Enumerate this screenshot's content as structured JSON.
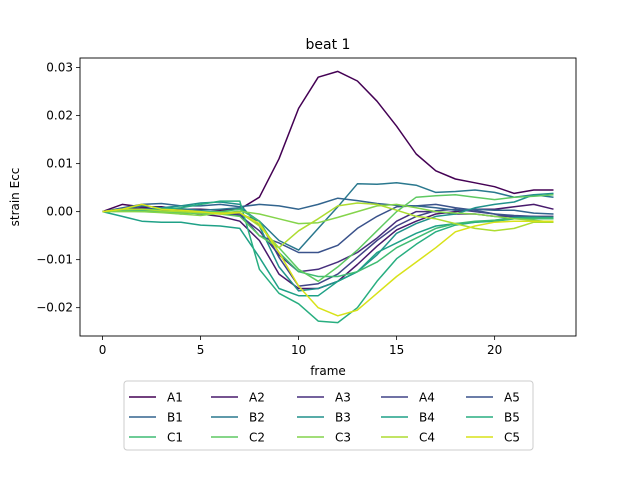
{
  "chart_data": {
    "type": "line",
    "title": "beat 1",
    "xlabel": "frame",
    "ylabel": "strain Ecc",
    "xlim": [
      -1.15,
      24.15
    ],
    "ylim": [
      -0.0259,
      0.032
    ],
    "xticks": [
      0,
      5,
      10,
      15,
      20
    ],
    "yticks": [
      -0.02,
      -0.01,
      0.0,
      0.01,
      0.02,
      0.03
    ],
    "xtick_labels": [
      "0",
      "5",
      "10",
      "15",
      "20"
    ],
    "ytick_labels": [
      "−0.02",
      "−0.01",
      "0.00",
      "0.01",
      "0.02",
      "0.03"
    ],
    "grid": false,
    "legend_position": "bottom",
    "x": [
      0,
      1,
      2,
      3,
      4,
      5,
      6,
      7,
      8,
      9,
      10,
      11,
      12,
      13,
      14,
      15,
      16,
      17,
      18,
      19,
      20,
      21,
      22,
      23
    ],
    "series": [
      {
        "name": "A1",
        "color": "#440154",
        "values": [
          0,
          0.0015,
          0.001,
          0.001,
          0.0005,
          0.0005,
          0.0003,
          0.0005,
          0.003,
          0.011,
          0.0215,
          0.028,
          0.0292,
          0.0272,
          0.023,
          0.0178,
          0.012,
          0.0085,
          0.0068,
          0.006,
          0.0052,
          0.0038,
          0.0045,
          0.0045
        ]
      },
      {
        "name": "A2",
        "color": "#481a6c",
        "values": [
          0,
          0.0005,
          0.0008,
          0.0004,
          0.0,
          -0.0005,
          -0.001,
          -0.002,
          -0.006,
          -0.013,
          -0.016,
          -0.016,
          -0.0145,
          -0.011,
          -0.0072,
          -0.0038,
          -0.002,
          -0.0005,
          0.0,
          0.0005,
          0.0005,
          0.001,
          0.0015,
          0.0005
        ]
      },
      {
        "name": "A3",
        "color": "#472f7d",
        "values": [
          0,
          0.0002,
          0.0004,
          0.0003,
          0.0001,
          0.0,
          -0.0003,
          -0.0008,
          -0.004,
          -0.009,
          -0.0125,
          -0.012,
          -0.0105,
          -0.0085,
          -0.0055,
          -0.002,
          0.0,
          0.0,
          -0.0005,
          -0.0005,
          -0.001,
          -0.001,
          -0.001,
          -0.001
        ]
      },
      {
        "name": "A4",
        "color": "#414487",
        "values": [
          0,
          0.0003,
          0.0006,
          0.0004,
          0.0003,
          0.0,
          -0.0003,
          -0.0005,
          -0.002,
          -0.0095,
          -0.0155,
          -0.015,
          -0.013,
          -0.0095,
          -0.006,
          -0.003,
          -0.001,
          0.0002,
          0.0005,
          0.0,
          -0.0005,
          -0.0012,
          -0.0015,
          -0.0015
        ]
      },
      {
        "name": "A5",
        "color": "#3a528b",
        "values": [
          0,
          0.0002,
          0.0004,
          0.0003,
          0.0002,
          0.0,
          -0.0001,
          -0.0003,
          -0.005,
          -0.0065,
          -0.0085,
          -0.0085,
          -0.007,
          -0.0035,
          -0.001,
          0.001,
          0.0012,
          0.0015,
          0.0008,
          0.0003,
          -0.0005,
          -0.0008,
          -0.001,
          -0.0015
        ]
      },
      {
        "name": "B1",
        "color": "#32648e",
        "values": [
          0,
          0.0008,
          0.0015,
          0.0017,
          0.0012,
          0.0012,
          0.0015,
          0.001,
          0.0015,
          0.0012,
          0.0005,
          0.0015,
          0.0028,
          0.0023,
          0.0017,
          0.0013,
          0.0012,
          0.0008,
          0.0003,
          0.0005,
          0.0003,
          0.0003,
          -0.0003,
          -0.0005
        ]
      },
      {
        "name": "B2",
        "color": "#2a788e",
        "values": [
          0,
          0.0005,
          0.0012,
          0.0008,
          0.0006,
          0.0003,
          0.0005,
          0.0008,
          -0.002,
          -0.006,
          -0.008,
          -0.0035,
          0.001,
          0.0058,
          0.0057,
          0.006,
          0.0055,
          0.004,
          0.0042,
          0.0045,
          0.004,
          0.003,
          0.0035,
          0.003
        ]
      },
      {
        "name": "B3",
        "color": "#21918c",
        "values": [
          0,
          0.0005,
          0.0002,
          0.0008,
          0.0012,
          0.0018,
          0.002,
          0.0015,
          -0.003,
          -0.0115,
          -0.0165,
          -0.016,
          -0.0145,
          -0.0125,
          -0.009,
          -0.0045,
          -0.0025,
          -0.001,
          -0.0005,
          0.0008,
          0.0015,
          0.002,
          0.0035,
          0.0038
        ]
      },
      {
        "name": "B4",
        "color": "#1fa187",
        "values": [
          0,
          -0.001,
          -0.002,
          -0.0022,
          -0.0022,
          -0.0028,
          -0.003,
          -0.0035,
          -0.0095,
          -0.016,
          -0.0175,
          -0.0175,
          -0.0145,
          -0.0125,
          -0.0085,
          -0.0065,
          -0.0045,
          -0.003,
          -0.0025,
          -0.0022,
          -0.0018,
          -0.0012,
          -0.0012,
          -0.0012
        ]
      },
      {
        "name": "B5",
        "color": "#28ae80",
        "values": [
          0,
          0.0003,
          0.0005,
          0.0005,
          0.0008,
          0.0015,
          0.0022,
          0.0022,
          -0.012,
          -0.017,
          -0.0192,
          -0.0228,
          -0.0231,
          -0.02,
          -0.0145,
          -0.0098,
          -0.0068,
          -0.0042,
          -0.0028,
          -0.0022,
          -0.002,
          -0.0015,
          -0.0012,
          -0.0012
        ]
      },
      {
        "name": "C1",
        "color": "#3fbc73",
        "values": [
          0,
          0.0002,
          0.0002,
          0.0,
          -0.0005,
          0.0,
          0.0,
          0.0005,
          -0.002,
          -0.0085,
          -0.0125,
          -0.0135,
          -0.0135,
          -0.0125,
          -0.0105,
          -0.0075,
          -0.0055,
          -0.0035,
          -0.0025,
          -0.002,
          -0.0018,
          -0.0015,
          -0.0015,
          -0.0015
        ]
      },
      {
        "name": "C2",
        "color": "#5ec962",
        "values": [
          0,
          0.0002,
          0.0,
          -0.0001,
          -0.0002,
          -0.0004,
          -0.0005,
          -0.001,
          -0.005,
          -0.0075,
          -0.012,
          -0.0145,
          -0.0115,
          -0.008,
          -0.004,
          0.0,
          0.003,
          0.0033,
          0.0035,
          0.003,
          0.0025,
          0.003,
          0.0032,
          0.0035
        ]
      },
      {
        "name": "C3",
        "color": "#84d44b",
        "values": [
          0,
          0.0,
          0.0,
          -0.0002,
          -0.0005,
          -0.0008,
          -0.0003,
          0.0001,
          -0.0005,
          -0.0015,
          -0.0025,
          -0.0023,
          -0.0012,
          0.0,
          0.0012,
          0.0015,
          0.0008,
          0.0,
          -0.0003,
          -0.0005,
          -0.001,
          -0.0015,
          -0.0018,
          -0.0022
        ]
      },
      {
        "name": "C4",
        "color": "#addc30",
        "values": [
          0,
          0.0005,
          0.0005,
          0.0002,
          0.0,
          -0.0002,
          -0.0002,
          -0.0002,
          -0.003,
          -0.0075,
          -0.004,
          -0.0015,
          0.0012,
          0.0018,
          0.0015,
          0.0003,
          -0.001,
          -0.0015,
          -0.0025,
          -0.0035,
          -0.004,
          -0.0035,
          -0.0022,
          -0.0022
        ]
      },
      {
        "name": "C5",
        "color": "#d8e219",
        "values": [
          0,
          0.0005,
          0.0015,
          0.0005,
          0.0003,
          0.0,
          -0.0005,
          -0.0002,
          -0.0025,
          -0.0085,
          -0.0155,
          -0.02,
          -0.0217,
          -0.0205,
          -0.017,
          -0.0135,
          -0.0105,
          -0.0075,
          -0.0042,
          -0.003,
          -0.0022,
          -0.002,
          -0.002,
          -0.002
        ]
      }
    ]
  }
}
